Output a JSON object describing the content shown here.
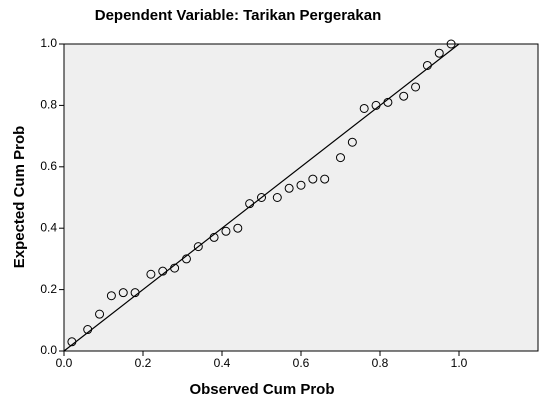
{
  "chart_data": {
    "type": "scatter",
    "title": "Dependent Variable: Tarikan Pergerakan",
    "xlabel": "Observed Cum Prob",
    "ylabel": "Expected Cum Prob",
    "x": [
      0.02,
      0.06,
      0.09,
      0.12,
      0.15,
      0.18,
      0.22,
      0.25,
      0.28,
      0.31,
      0.34,
      0.38,
      0.41,
      0.44,
      0.47,
      0.5,
      0.54,
      0.57,
      0.6,
      0.63,
      0.66,
      0.7,
      0.73,
      0.76,
      0.79,
      0.82,
      0.86,
      0.89,
      0.92,
      0.95,
      0.98
    ],
    "y": [
      0.03,
      0.07,
      0.12,
      0.18,
      0.19,
      0.19,
      0.25,
      0.26,
      0.27,
      0.3,
      0.34,
      0.37,
      0.39,
      0.4,
      0.48,
      0.5,
      0.5,
      0.53,
      0.54,
      0.56,
      0.56,
      0.63,
      0.68,
      0.79,
      0.8,
      0.81,
      0.83,
      0.86,
      0.93,
      0.97,
      1.0
    ],
    "color": "#000000",
    "reference_line": {
      "x": [
        0,
        1
      ],
      "y": [
        0,
        1
      ]
    },
    "xlim": [
      0,
      1.2
    ],
    "ylim": [
      0,
      1
    ],
    "xticks": [
      {
        "value": 0,
        "label": "0.0"
      },
      {
        "value": 0.2,
        "label": "0.2"
      },
      {
        "value": 0.4,
        "label": "0.4"
      },
      {
        "value": 0.6,
        "label": "0.6"
      },
      {
        "value": 0.8,
        "label": "0.8"
      },
      {
        "value": 1,
        "label": "1.0"
      }
    ],
    "yticks": [
      {
        "value": 0,
        "label": "0.0"
      },
      {
        "value": 0.2,
        "label": "0.2"
      },
      {
        "value": 0.4,
        "label": "0.4"
      },
      {
        "value": 0.6,
        "label": "0.6"
      },
      {
        "value": 0.8,
        "label": "0.8"
      },
      {
        "value": 1,
        "label": "1.0"
      }
    ],
    "grid": false
  }
}
